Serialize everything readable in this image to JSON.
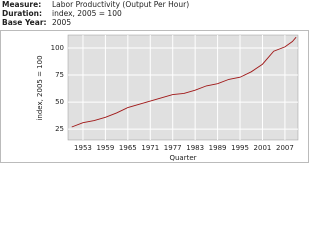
{
  "header": {
    "rows": [
      [
        "Measure:",
        "Labor Productivity (Output Per Hour)"
      ],
      [
        "Duration:",
        "index, 2005 = 100"
      ],
      [
        "Base Year:",
        "2005"
      ]
    ]
  },
  "chart_data": {
    "type": "line",
    "x_label": "Quarter",
    "y_label": "index, 2005 = 100",
    "x": [
      1950,
      1953,
      1956,
      1959,
      1962,
      1965,
      1968,
      1971,
      1974,
      1977,
      1980,
      1983,
      1986,
      1989,
      1992,
      1995,
      1998,
      2001,
      2004,
      2007,
      2009,
      2010
    ],
    "values": [
      27,
      31,
      33,
      36,
      40,
      45,
      48,
      51,
      54,
      57,
      58,
      61,
      65,
      67,
      71,
      73,
      78,
      85,
      97,
      101,
      106,
      110
    ],
    "color": "#a01818",
    "xlim": [
      1949,
      2010.5
    ],
    "ylim": [
      15,
      112
    ],
    "xticks": [
      1953,
      1959,
      1965,
      1971,
      1977,
      1983,
      1989,
      1995,
      2001,
      2007
    ],
    "yticks": [
      25,
      50,
      75,
      100
    ],
    "grid": true,
    "plot_background": "#e0e0e0",
    "x_label_color": "#3355bb"
  }
}
